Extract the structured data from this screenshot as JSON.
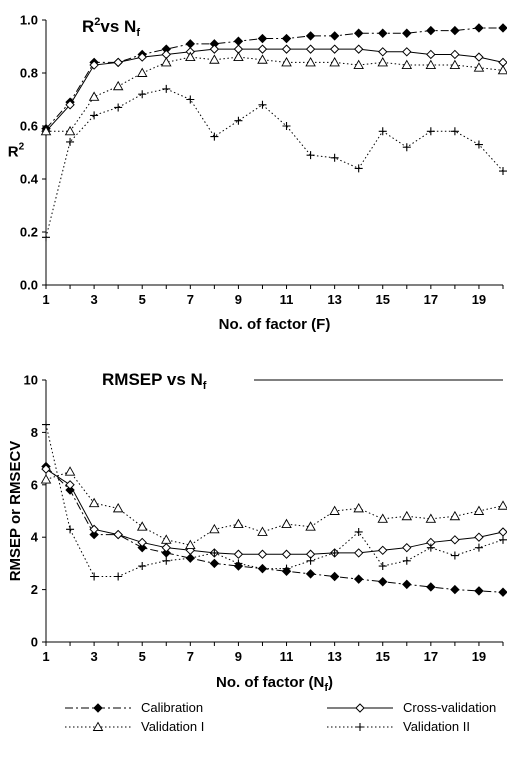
{
  "chart_data": [
    {
      "type": "line",
      "title": "R",
      "title_sup": "2",
      "title_mid": "vs N",
      "title_sub": "f",
      "xlabel": "No. of factor (F)",
      "ylabel": "R",
      "ylabel_sup": "2",
      "xlim": [
        1,
        20
      ],
      "ylim": [
        0,
        1
      ],
      "xticks": [
        "1",
        "3",
        "5",
        "7",
        "9",
        "11",
        "13",
        "15",
        "17",
        "19"
      ],
      "yticks": [
        "0.0",
        "0.2",
        "0.4",
        "0.6",
        "0.8",
        "1.0"
      ],
      "x": [
        1,
        2,
        3,
        4,
        5,
        6,
        7,
        8,
        9,
        10,
        11,
        12,
        13,
        14,
        15,
        16,
        17,
        18,
        19,
        20
      ],
      "series": [
        {
          "name": "Calibration",
          "values": [
            0.59,
            0.69,
            0.84,
            0.84,
            0.87,
            0.89,
            0.91,
            0.91,
            0.92,
            0.93,
            0.93,
            0.94,
            0.94,
            0.95,
            0.95,
            0.95,
            0.96,
            0.96,
            0.97,
            0.97
          ]
        },
        {
          "name": "Cross-validation",
          "values": [
            0.58,
            0.68,
            0.83,
            0.84,
            0.86,
            0.87,
            0.88,
            0.89,
            0.89,
            0.89,
            0.89,
            0.89,
            0.89,
            0.89,
            0.88,
            0.88,
            0.87,
            0.87,
            0.86,
            0.84
          ]
        },
        {
          "name": "Validation I",
          "values": [
            0.58,
            0.58,
            0.71,
            0.75,
            0.8,
            0.84,
            0.86,
            0.85,
            0.86,
            0.85,
            0.84,
            0.84,
            0.84,
            0.83,
            0.84,
            0.83,
            0.83,
            0.83,
            0.82,
            0.81
          ]
        },
        {
          "name": "Validation II",
          "values": [
            0.18,
            0.54,
            0.64,
            0.67,
            0.72,
            0.74,
            0.7,
            0.56,
            0.62,
            0.68,
            0.6,
            0.49,
            0.48,
            0.44,
            0.58,
            0.52,
            0.58,
            0.58,
            0.53,
            0.43
          ]
        }
      ]
    },
    {
      "type": "line",
      "title": "RMSEP vs N",
      "title_sub": "f",
      "xlabel": "No. of factor (N",
      "xlabel_sub": "f",
      "xlabel_end": ")",
      "ylabel": "RMSEP or RMSECV",
      "xlim": [
        1,
        20
      ],
      "ylim": [
        0,
        10
      ],
      "xticks": [
        "1",
        "3",
        "5",
        "7",
        "9",
        "11",
        "13",
        "15",
        "17",
        "19"
      ],
      "yticks": [
        "0",
        "2",
        "4",
        "6",
        "8",
        "10"
      ],
      "x": [
        1,
        2,
        3,
        4,
        5,
        6,
        7,
        8,
        9,
        10,
        11,
        12,
        13,
        14,
        15,
        16,
        17,
        18,
        19,
        20
      ],
      "series": [
        {
          "name": "Calibration",
          "values": [
            6.7,
            5.8,
            4.1,
            4.1,
            3.6,
            3.4,
            3.2,
            3.0,
            2.9,
            2.8,
            2.7,
            2.6,
            2.5,
            2.4,
            2.3,
            2.2,
            2.1,
            2.0,
            1.95,
            1.9
          ]
        },
        {
          "name": "Cross-validation",
          "values": [
            6.6,
            6.0,
            4.3,
            4.1,
            3.8,
            3.6,
            3.5,
            3.4,
            3.35,
            3.35,
            3.35,
            3.35,
            3.4,
            3.4,
            3.5,
            3.6,
            3.8,
            3.9,
            4.0,
            4.2
          ]
        },
        {
          "name": "Validation I",
          "values": [
            6.2,
            6.5,
            5.3,
            5.1,
            4.4,
            3.9,
            3.7,
            4.3,
            4.5,
            4.2,
            4.5,
            4.4,
            5.0,
            5.1,
            4.7,
            4.8,
            4.7,
            4.8,
            5.0,
            5.2
          ]
        },
        {
          "name": "Validation II",
          "values": [
            8.3,
            4.3,
            2.5,
            2.5,
            2.9,
            3.1,
            3.2,
            3.4,
            3.0,
            2.8,
            2.8,
            3.1,
            3.4,
            4.2,
            2.9,
            3.1,
            3.6,
            3.3,
            3.6,
            3.9
          ]
        }
      ]
    }
  ],
  "legend": [
    {
      "name": "Calibration",
      "style": "dashdot",
      "marker": "diamond-filled"
    },
    {
      "name": "Cross-validation",
      "style": "solid",
      "marker": "diamond-open"
    },
    {
      "name": "Validation I",
      "style": "dotted",
      "marker": "triangle-open"
    },
    {
      "name": "Validation II",
      "style": "dotted",
      "marker": "plus"
    }
  ]
}
